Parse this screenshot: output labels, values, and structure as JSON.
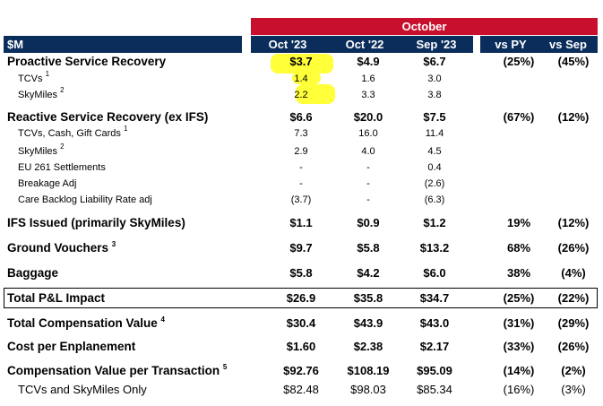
{
  "header": {
    "period": "October",
    "label": "$M",
    "cols": [
      "Oct '23",
      "Oct '22",
      "Sep '23",
      "vs PY",
      "vs Sep"
    ]
  },
  "rows": [
    {
      "label": "Proactive Service Recovery",
      "sup": "",
      "v": [
        "$3.7",
        "$4.9",
        "$6.7",
        "(25%)",
        "(45%)"
      ]
    },
    {
      "label": "TCVs",
      "sup": "1",
      "v": [
        "1.4",
        "1.6",
        "3.0",
        "",
        ""
      ]
    },
    {
      "label": "SkyMiles",
      "sup": "2",
      "v": [
        "2.2",
        "3.3",
        "3.8",
        "",
        ""
      ]
    },
    {
      "label": "Reactive Service Recovery (ex IFS)",
      "sup": "",
      "v": [
        "$6.6",
        "$20.0",
        "$7.5",
        "(67%)",
        "(12%)"
      ]
    },
    {
      "label": "TCVs, Cash, Gift Cards",
      "sup": "1",
      "v": [
        "7.3",
        "16.0",
        "11.4",
        "",
        ""
      ]
    },
    {
      "label": "SkyMiles",
      "sup": "2",
      "v": [
        "2.9",
        "4.0",
        "4.5",
        "",
        ""
      ]
    },
    {
      "label": "EU 261 Settlements",
      "sup": "",
      "v": [
        "-",
        "-",
        "0.4",
        "",
        ""
      ]
    },
    {
      "label": "Breakage Adj",
      "sup": "",
      "v": [
        "-",
        "-",
        "(2.6)",
        "",
        ""
      ]
    },
    {
      "label": "Care Backlog Liability Rate adj",
      "sup": "",
      "v": [
        "(3.7)",
        "-",
        "(6.3)",
        "",
        ""
      ]
    },
    {
      "label": "IFS Issued (primarily SkyMiles)",
      "sup": "",
      "v": [
        "$1.1",
        "$0.9",
        "$1.2",
        "19%",
        "(12%)"
      ]
    },
    {
      "label": "Ground Vouchers",
      "sup": "3",
      "v": [
        "$9.7",
        "$5.8",
        "$13.2",
        "68%",
        "(26%)"
      ]
    },
    {
      "label": "Baggage",
      "sup": "",
      "v": [
        "$5.8",
        "$4.2",
        "$6.0",
        "38%",
        "(4%)"
      ]
    },
    {
      "label": "Total P&L Impact",
      "sup": "",
      "v": [
        "$26.9",
        "$35.8",
        "$34.7",
        "(25%)",
        "(22%)"
      ]
    },
    {
      "label": "Total Compensation Value",
      "sup": "4",
      "v": [
        "$30.4",
        "$43.9",
        "$43.0",
        "(31%)",
        "(29%)"
      ]
    },
    {
      "label": "Cost per Enplanement",
      "sup": "",
      "v": [
        "$1.60",
        "$2.38",
        "$2.17",
        "(33%)",
        "(26%)"
      ]
    },
    {
      "label": "Compensation Value per Transaction",
      "sup": "5",
      "v": [
        "$92.76",
        "$108.19",
        "$95.09",
        "(14%)",
        "(2%)"
      ]
    },
    {
      "label": "TCVs and SkyMiles Only",
      "sup": "",
      "v": [
        "$82.48",
        "$98.03",
        "$85.34",
        "(16%)",
        "(3%)"
      ]
    }
  ],
  "highlight_color": "#ffff3a",
  "accent_red": "#c8102e",
  "accent_navy": "#0b2d5c"
}
